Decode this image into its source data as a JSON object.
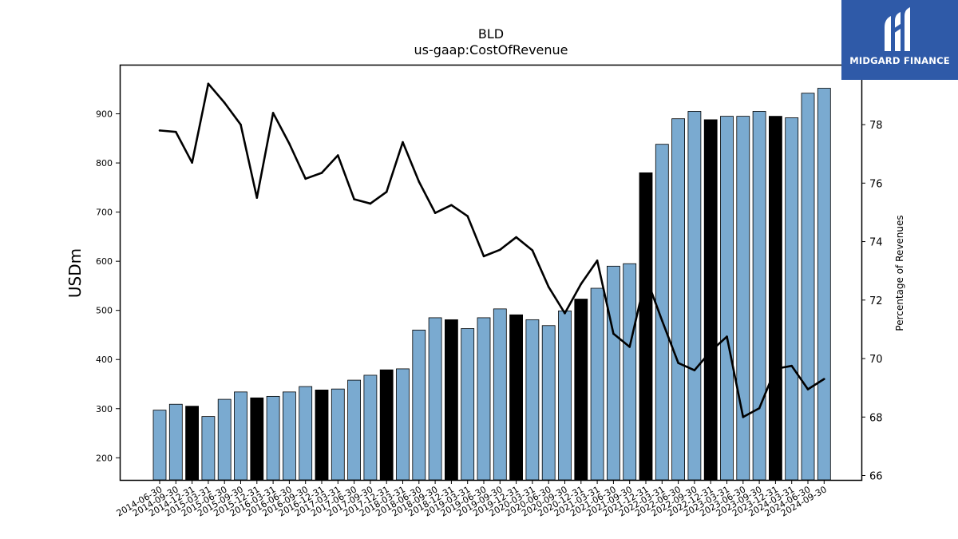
{
  "chart_data": {
    "type": "bar",
    "title": "BLD",
    "subtitle": "us-gaap:CostOfRevenue",
    "ylabel": "USDm",
    "y2label": "Percentage of Revenues",
    "ylim": [
      155,
      1000
    ],
    "y2lim": [
      65.85,
      80.05
    ],
    "yticks": [
      200,
      300,
      400,
      500,
      600,
      700,
      800,
      900
    ],
    "y2ticks": [
      66,
      68,
      70,
      72,
      74,
      76,
      78
    ],
    "grid": false,
    "categories": [
      "2014-06-30",
      "2014-09-30",
      "2014-12-31",
      "2015-03-31",
      "2015-06-30",
      "2015-09-30",
      "2015-12-31",
      "2016-03-31",
      "2016-06-30",
      "2016-09-30",
      "2016-12-31",
      "2017-03-31",
      "2017-06-30",
      "2017-09-30",
      "2017-12-31",
      "2018-03-31",
      "2018-06-30",
      "2018-09-30",
      "2018-12-31",
      "2019-03-31",
      "2019-06-30",
      "2019-09-30",
      "2019-12-31",
      "2020-03-31",
      "2020-06-30",
      "2020-09-30",
      "2020-12-31",
      "2021-03-31",
      "2021-06-30",
      "2021-09-30",
      "2021-12-31",
      "2022-03-31",
      "2022-06-30",
      "2022-09-30",
      "2022-12-31",
      "2023-03-31",
      "2023-06-30",
      "2023-09-30",
      "2023-12-31",
      "2024-03-31",
      "2024-06-30",
      "2024-09-30"
    ],
    "series": [
      {
        "name": "CostOfRevenue",
        "kind": "bar",
        "values": [
          297,
          309,
          305,
          284,
          319,
          334,
          322,
          325,
          334,
          345,
          338,
          340,
          358,
          368,
          379,
          381,
          460,
          485,
          481,
          463,
          485,
          503,
          491,
          481,
          469,
          499,
          523,
          545,
          590,
          595,
          780,
          838,
          890,
          905,
          888,
          895,
          895,
          905,
          895,
          892,
          942,
          952
        ]
      },
      {
        "name": "Percentage of Revenues",
        "kind": "line",
        "axis": "right",
        "values": [
          77.8,
          77.75,
          76.7,
          79.4,
          78.75,
          78.0,
          75.5,
          78.4,
          77.35,
          76.15,
          76.35,
          76.95,
          75.45,
          75.3,
          75.7,
          77.4,
          76.05,
          74.98,
          75.25,
          74.87,
          73.5,
          73.72,
          74.15,
          73.7,
          72.45,
          71.55,
          72.55,
          73.35,
          70.85,
          70.4,
          72.8,
          71.3,
          69.85,
          69.6,
          70.25,
          70.75,
          68.0,
          68.3,
          69.65,
          69.75,
          68.95,
          69.3
        ]
      }
    ],
    "bar_fill": "#7aaad0",
    "bar_highlight_fill": "#000000",
    "highlight_indices": [
      2,
      6,
      10,
      14,
      18,
      22,
      26,
      30,
      34,
      38
    ],
    "line_color": "#000000"
  },
  "logo": {
    "text": "MIDGARD FINANCE",
    "background": "#2f5aa8"
  }
}
